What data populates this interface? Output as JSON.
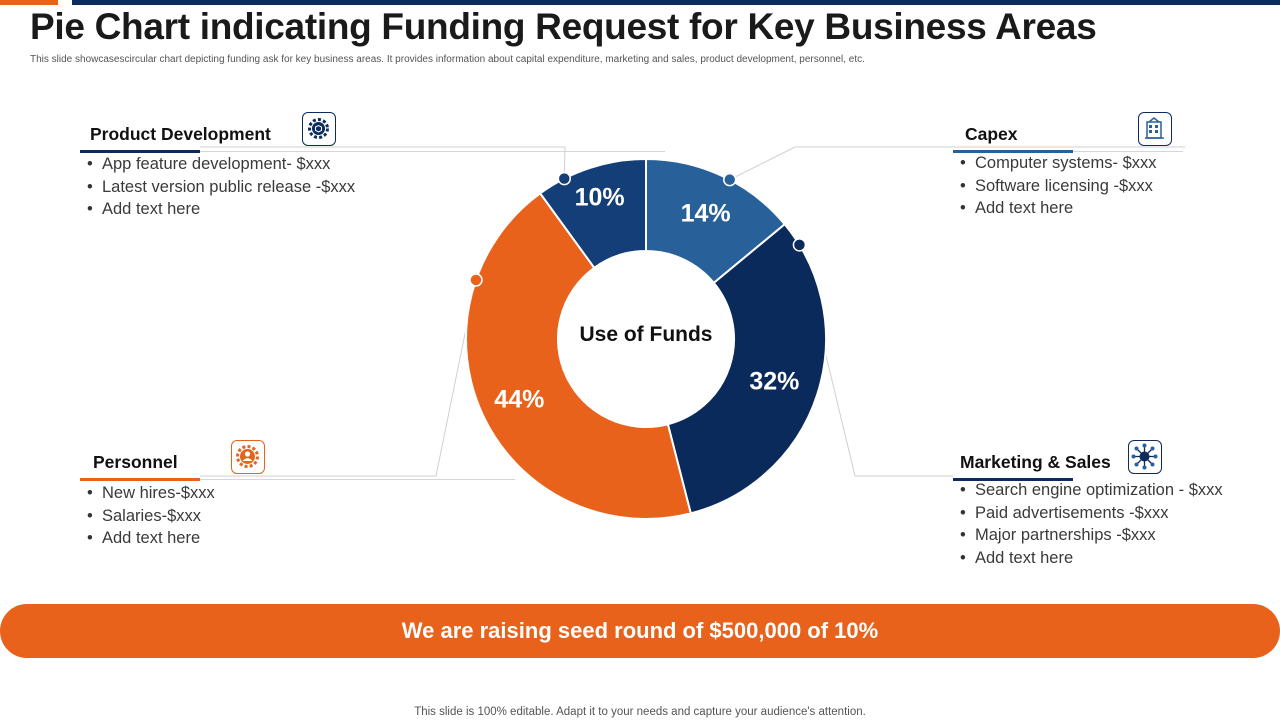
{
  "slide": {
    "title": "Pie Chart indicating Funding Request for Key Business Areas",
    "subtitle": "This slide showcasescircular chart depicting funding ask for key business areas. It provides information about capital expenditure, marketing and sales, product development, personnel, etc.",
    "banner": "We are raising seed round of $500,000 of 10%",
    "footer": "This slide is 100% editable. Adapt it to your needs and capture your audience's attention."
  },
  "panels": {
    "product_development": {
      "title": "Product  Development",
      "icon": "gear-cube-icon",
      "items": [
        "App feature development- $xxx",
        "Latest version public release -$xxx",
        "Add text here"
      ]
    },
    "capex": {
      "title": "Capex",
      "icon": "building-icon",
      "items": [
        "Computer systems- $xxx",
        "Software licensing -$xxx",
        "Add text here"
      ]
    },
    "personnel": {
      "title": "Personnel",
      "icon": "person-gear-icon",
      "items": [
        "New hires-$xxx",
        "Salaries-$xxx",
        "Add text here"
      ]
    },
    "marketing_sales": {
      "title": "Marketing  & Sales",
      "icon": "network-icon",
      "items": [
        "Search engine optimization - $xxx",
        "Paid advertisements -$xxx",
        "Major partnerships -$xxx",
        "Add text here"
      ]
    }
  },
  "colors": {
    "orange": "#e8621c",
    "navy": "#0d2c5e",
    "blue": "#28609a",
    "dark_blue": "#143e78"
  },
  "chart_data": {
    "type": "pie",
    "center_label": "Use of Funds",
    "slices": [
      {
        "key": "capex",
        "value": 14,
        "label": "14%",
        "color": "#28609a"
      },
      {
        "key": "marketing_sales",
        "value": 32,
        "label": "32%",
        "color": "#0b2a5c"
      },
      {
        "key": "personnel",
        "value": 44,
        "label": "44%",
        "color": "#e8621c"
      },
      {
        "key": "product_development",
        "value": 10,
        "label": "10%",
        "color": "#143e78"
      }
    ]
  }
}
